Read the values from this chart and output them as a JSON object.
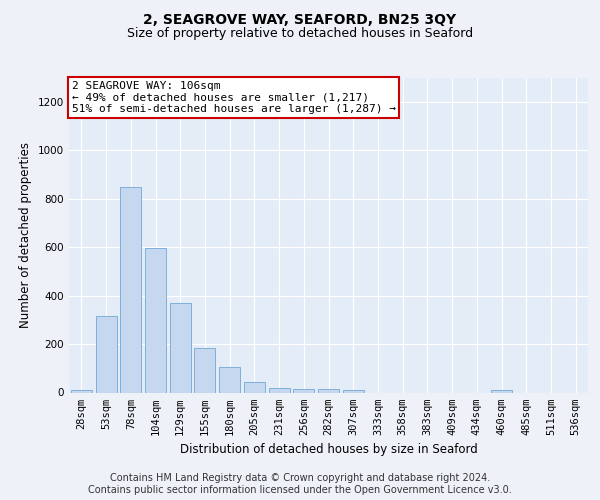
{
  "title": "2, SEAGROVE WAY, SEAFORD, BN25 3QY",
  "subtitle": "Size of property relative to detached houses in Seaford",
  "xlabel": "Distribution of detached houses by size in Seaford",
  "ylabel": "Number of detached properties",
  "categories": [
    "28sqm",
    "53sqm",
    "78sqm",
    "104sqm",
    "129sqm",
    "155sqm",
    "180sqm",
    "205sqm",
    "231sqm",
    "256sqm",
    "282sqm",
    "307sqm",
    "333sqm",
    "358sqm",
    "383sqm",
    "409sqm",
    "434sqm",
    "460sqm",
    "485sqm",
    "511sqm",
    "536sqm"
  ],
  "values": [
    10,
    315,
    848,
    595,
    370,
    185,
    105,
    45,
    20,
    15,
    15,
    10,
    0,
    0,
    0,
    0,
    0,
    10,
    0,
    0,
    0
  ],
  "bar_color": "#c5d8f0",
  "bar_edge_color": "#6fa8d6",
  "annotation_box_text": "2 SEAGROVE WAY: 106sqm\n← 49% of detached houses are smaller (1,217)\n51% of semi-detached houses are larger (1,287) →",
  "ylim": [
    0,
    1300
  ],
  "yticks": [
    0,
    200,
    400,
    600,
    800,
    1000,
    1200
  ],
  "background_color": "#eef2f8",
  "plot_bg_color": "#e4ecf7",
  "grid_color": "#ffffff",
  "title_fontsize": 10,
  "subtitle_fontsize": 9,
  "axis_label_fontsize": 8.5,
  "ylabel_fontsize": 8.5,
  "tick_fontsize": 7.5,
  "footer_text": "Contains HM Land Registry data © Crown copyright and database right 2024.\nContains public sector information licensed under the Open Government Licence v3.0.",
  "footer_fontsize": 7
}
